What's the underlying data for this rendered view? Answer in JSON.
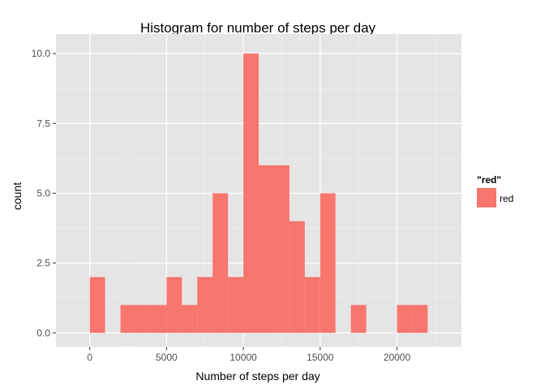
{
  "chart_data": {
    "type": "bar",
    "title": "Histogram for number of steps per day",
    "xlabel": "Number of steps per day",
    "ylabel": "count",
    "bin_width": 1000,
    "bins": [
      {
        "x0": 0,
        "x1": 1000,
        "count": 2
      },
      {
        "x0": 1000,
        "x1": 2000,
        "count": 0
      },
      {
        "x0": 2000,
        "x1": 3000,
        "count": 1
      },
      {
        "x0": 3000,
        "x1": 4000,
        "count": 1
      },
      {
        "x0": 4000,
        "x1": 5000,
        "count": 1
      },
      {
        "x0": 5000,
        "x1": 6000,
        "count": 2
      },
      {
        "x0": 6000,
        "x1": 7000,
        "count": 1
      },
      {
        "x0": 7000,
        "x1": 8000,
        "count": 2
      },
      {
        "x0": 8000,
        "x1": 9000,
        "count": 5
      },
      {
        "x0": 9000,
        "x1": 10000,
        "count": 2
      },
      {
        "x0": 10000,
        "x1": 11000,
        "count": 10
      },
      {
        "x0": 11000,
        "x1": 12000,
        "count": 6
      },
      {
        "x0": 12000,
        "x1": 13000,
        "count": 6
      },
      {
        "x0": 13000,
        "x1": 14000,
        "count": 4
      },
      {
        "x0": 14000,
        "x1": 15000,
        "count": 2
      },
      {
        "x0": 15000,
        "x1": 16000,
        "count": 5
      },
      {
        "x0": 16000,
        "x1": 17000,
        "count": 0
      },
      {
        "x0": 17000,
        "x1": 18000,
        "count": 1
      },
      {
        "x0": 18000,
        "x1": 19000,
        "count": 0
      },
      {
        "x0": 19000,
        "x1": 20000,
        "count": 0
      },
      {
        "x0": 20000,
        "x1": 21000,
        "count": 1
      },
      {
        "x0": 21000,
        "x1": 22000,
        "count": 1
      }
    ],
    "xlim": [
      -2200,
      24200
    ],
    "ylim": [
      -0.5,
      10.7
    ],
    "x_ticks": [
      0,
      5000,
      10000,
      15000,
      20000
    ],
    "x_tick_labels": [
      "0",
      "5000",
      "10000",
      "15000",
      "20000"
    ],
    "y_ticks": [
      0,
      2.5,
      5,
      7.5,
      10
    ],
    "y_tick_labels": [
      "0.0",
      "2.5",
      "5.0",
      "7.5",
      "10.0"
    ],
    "grid": true,
    "legend": {
      "title": "\"red\"",
      "position": "right",
      "entries": [
        {
          "label": "red",
          "color": "#F8766D"
        }
      ]
    },
    "colors": {
      "bar": "#F8766D",
      "panel_background": "#E5E5E5",
      "grid_major": "#FFFFFF",
      "grid_minor": "#F2F2F2"
    }
  }
}
